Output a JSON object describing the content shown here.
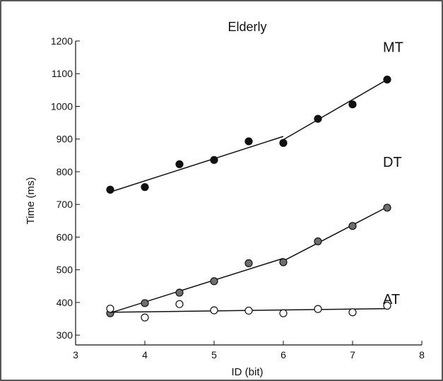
{
  "chart_data": {
    "type": "scatter",
    "title": "Elderly",
    "xlabel": "ID (bit)",
    "ylabel": "Time (ms)",
    "xlim": [
      3,
      8
    ],
    "ylim": [
      300,
      1200
    ],
    "xticks": [
      3,
      4,
      5,
      6,
      7,
      8
    ],
    "yticks": [
      300,
      400,
      500,
      600,
      700,
      800,
      900,
      1000,
      1100,
      1200
    ],
    "grid": false,
    "legend": "none",
    "series": [
      {
        "name": "MT",
        "marker": "filled-black",
        "points": [
          [
            3.5,
            745
          ],
          [
            4.0,
            753
          ],
          [
            4.5,
            823
          ],
          [
            5.0,
            836
          ],
          [
            5.5,
            893
          ],
          [
            6.0,
            888
          ],
          [
            6.5,
            962
          ],
          [
            7.0,
            1006
          ],
          [
            7.5,
            1082
          ]
        ],
        "fit_lines": [
          [
            [
              3.5,
              738
            ],
            [
              6.0,
              908
            ]
          ],
          [
            [
              6.0,
              898
            ],
            [
              7.5,
              1082
            ]
          ]
        ]
      },
      {
        "name": "DT",
        "marker": "filled-gray",
        "points": [
          [
            3.5,
            367
          ],
          [
            4.0,
            398
          ],
          [
            4.5,
            430
          ],
          [
            5.0,
            465
          ],
          [
            5.5,
            520
          ],
          [
            6.0,
            523
          ],
          [
            6.5,
            587
          ],
          [
            7.0,
            634
          ],
          [
            7.5,
            690
          ]
        ],
        "fit_lines": [
          [
            [
              3.5,
              368
            ],
            [
              6.0,
              535
            ]
          ],
          [
            [
              6.0,
              527
            ],
            [
              7.5,
              692
            ]
          ]
        ]
      },
      {
        "name": "AT",
        "marker": "open",
        "points": [
          [
            3.5,
            381
          ],
          [
            4.0,
            354
          ],
          [
            4.5,
            395
          ],
          [
            5.0,
            376
          ],
          [
            5.5,
            375
          ],
          [
            6.0,
            367
          ],
          [
            6.5,
            380
          ],
          [
            7.0,
            370
          ],
          [
            7.5,
            390
          ]
        ],
        "fit_lines": [
          [
            [
              3.5,
              370
            ],
            [
              6.0,
              377
            ]
          ],
          [
            [
              6.0,
              377
            ],
            [
              7.5,
              381
            ]
          ]
        ]
      }
    ]
  },
  "colors": {
    "background": "#ffffff",
    "axis": "#111111",
    "line": "#111111",
    "marker_black": "#111111",
    "marker_gray": "#6e6e6e",
    "marker_open_fill": "#ffffff"
  }
}
